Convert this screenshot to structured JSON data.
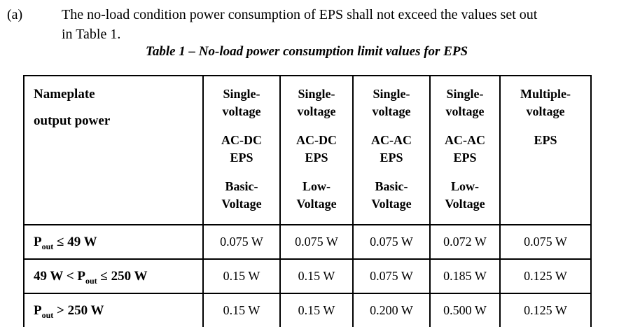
{
  "document": {
    "item_label": "(a)",
    "paragraph": "The no-load condition power consumption of EPS shall not exceed the values set out\nin Table 1.",
    "caption": "Table 1 – No-load power consumption limit values for EPS"
  },
  "table": {
    "corner": {
      "line1": "Nameplate",
      "line2": "output power"
    },
    "columns": [
      {
        "groups": [
          "Single-\nvoltage",
          "AC-DC\nEPS",
          "Basic-\nVoltage"
        ]
      },
      {
        "groups": [
          "Single-\nvoltage",
          "AC-DC\nEPS",
          "Low-\nVoltage"
        ]
      },
      {
        "groups": [
          "Single-\nvoltage",
          "AC-AC\nEPS",
          "Basic-\nVoltage"
        ]
      },
      {
        "groups": [
          "Single-\nvoltage",
          "AC-AC\nEPS",
          "Low-\nVoltage"
        ]
      },
      {
        "groups": [
          "Multiple-\nvoltage",
          "EPS",
          ""
        ]
      }
    ],
    "rows": [
      {
        "label": {
          "pre": "P",
          "sub": "out",
          "post": " ≤ 49 W"
        },
        "values": [
          "0.075 W",
          "0.075 W",
          "0.075 W",
          "0.072 W",
          "0.075 W"
        ]
      },
      {
        "label": {
          "pre": "49 W < P",
          "sub": "out",
          "post": " ≤ 250 W"
        },
        "values": [
          "0.15 W",
          "0.15 W",
          "0.075 W",
          "0.185 W",
          "0.125 W"
        ]
      },
      {
        "label": {
          "pre": "P",
          "sub": "out",
          "post": " > 250 W"
        },
        "values": [
          "0.15 W",
          "0.15 W",
          "0.200 W",
          "0.500 W",
          "0.125 W"
        ]
      }
    ]
  }
}
